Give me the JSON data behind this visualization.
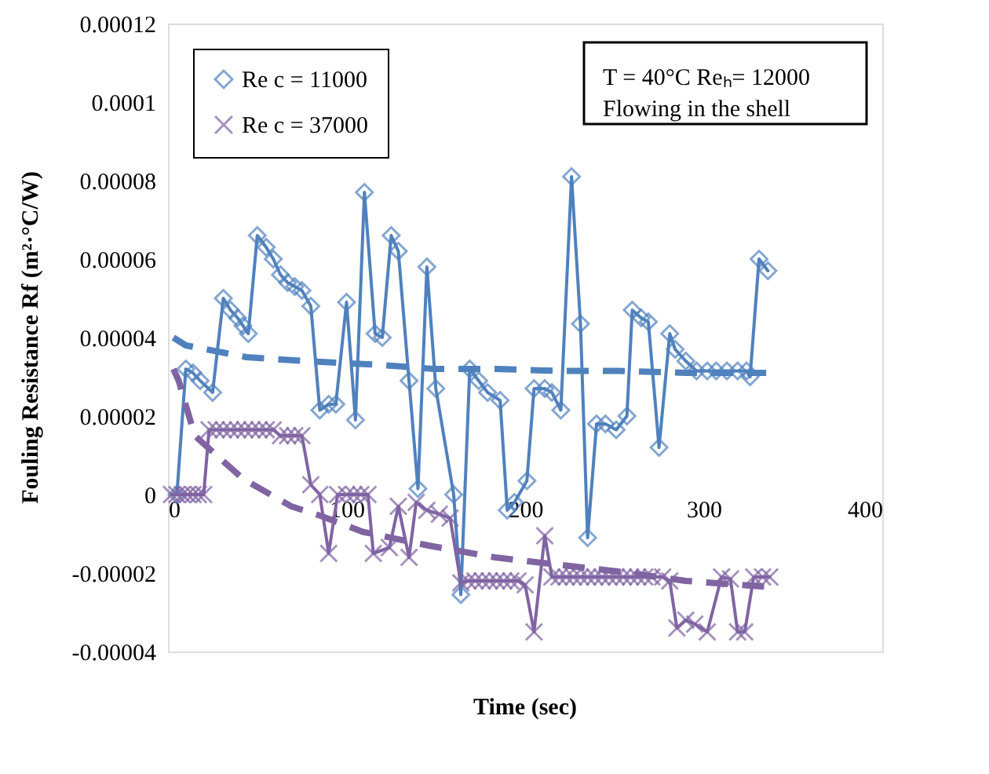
{
  "chart_data": {
    "type": "line",
    "xlabel": "Time (sec)",
    "ylabel": "Fouling Resistance  Rf   (m²·°C/W)",
    "xlim": [
      0,
      400
    ],
    "xticks": [
      0,
      100,
      200,
      300,
      400
    ],
    "ylim": [
      -4e-05,
      0.00012
    ],
    "yticks": [
      {
        "value": -4e-05,
        "label": "-0.00004"
      },
      {
        "value": -2e-05,
        "label": "-0.00002"
      },
      0,
      {
        "value": 2e-05,
        "label": "0.00002"
      },
      {
        "value": 4e-05,
        "label": "0.00004"
      },
      {
        "value": 6e-05,
        "label": "0.00006"
      },
      {
        "value": 8e-05,
        "label": "0.00008"
      },
      {
        "value": 0.0001,
        "label": "0.0001"
      },
      {
        "value": 0.00012,
        "label": "0.00012"
      }
    ],
    "grid": false,
    "legend": "top left",
    "annotations": [
      "T = 40°C  Reₕ=  12000",
      "Flowing in the shell"
    ],
    "series": [
      {
        "name": "Re c = 11000",
        "color": "#4f81bd",
        "marker": "diamond",
        "line_style": "solid",
        "x": [
          5,
          10,
          14,
          18,
          25,
          31,
          35,
          39,
          42,
          45,
          50,
          55,
          59,
          63,
          67,
          71,
          75,
          80,
          85,
          90,
          94,
          100,
          105,
          110,
          116,
          120,
          125,
          129,
          135,
          140,
          145,
          150,
          160,
          164,
          169,
          174,
          179,
          186,
          190,
          194,
          201,
          205,
          211,
          215,
          220,
          226,
          231,
          235,
          240,
          245,
          251,
          257,
          260,
          265,
          269,
          275,
          281,
          284,
          290,
          296,
          302,
          307,
          313,
          319,
          324,
          326,
          331,
          336
        ],
        "values": [
          0,
          3.2e-05,
          3.1e-05,
          2.9e-05,
          2.6e-05,
          5e-05,
          4.7e-05,
          4.5e-05,
          4.3e-05,
          4.1e-05,
          6.6e-05,
          6.3e-05,
          6e-05,
          5.6e-05,
          5.4e-05,
          5.3e-05,
          5.2e-05,
          4.8e-05,
          2.15e-05,
          2.3e-05,
          2.3e-05,
          4.9e-05,
          1.9e-05,
          7.7e-05,
          4.1e-05,
          4e-05,
          6.6e-05,
          6.2e-05,
          2.9e-05,
          1.5e-06,
          5.8e-05,
          2.7e-05,
          0,
          -2.55e-05,
          3.2e-05,
          2.9e-05,
          2.6e-05,
          2.4e-05,
          -4e-06,
          -2e-06,
          3.5e-06,
          2.7e-05,
          2.7e-05,
          2.6e-05,
          2.15e-05,
          8.1e-05,
          4.35e-05,
          -1.1e-05,
          1.8e-05,
          1.8e-05,
          1.65e-05,
          2e-05,
          4.7e-05,
          4.5e-05,
          4.4e-05,
          1.2e-05,
          4.1e-05,
          3.7e-05,
          3.4e-05,
          3.15e-05,
          3.15e-05,
          3.15e-05,
          3.15e-05,
          3.15e-05,
          3.15e-05,
          3e-05,
          6e-05,
          5.7e-05
        ]
      },
      {
        "name": "Re c = 37000",
        "color": "#8064a2",
        "marker": "cross",
        "line_style": "solid",
        "x": [
          2,
          5,
          8,
          11,
          14,
          17,
          20,
          23,
          27,
          31,
          35,
          39,
          43,
          47,
          51,
          55,
          59,
          63,
          67,
          71,
          75,
          80,
          85,
          90,
          95,
          100,
          104,
          108,
          112,
          115,
          124,
          129,
          135,
          139,
          145,
          152,
          158,
          164,
          168,
          172,
          176,
          180,
          184,
          188,
          192,
          196,
          200,
          205,
          211,
          215,
          219,
          223,
          227,
          231,
          235,
          239,
          243,
          247,
          251,
          255,
          259,
          263,
          267,
          271,
          277,
          281,
          285,
          290,
          295,
          302,
          310,
          315,
          319,
          323,
          328,
          333,
          337
        ],
        "values": [
          0,
          0,
          0,
          0,
          0,
          0,
          0,
          1.65e-05,
          1.65e-05,
          1.65e-05,
          1.65e-05,
          1.65e-05,
          1.65e-05,
          1.65e-05,
          1.65e-05,
          1.65e-05,
          1.65e-05,
          1.5e-05,
          1.5e-05,
          1.5e-05,
          1.5e-05,
          2.5e-06,
          0,
          -1.5e-05,
          0,
          0,
          0,
          0,
          0,
          -1.5e-05,
          -1.35e-05,
          -3e-06,
          -1.6e-05,
          -2e-06,
          -4e-06,
          -5e-06,
          -6e-06,
          -2.25e-05,
          -2.2e-05,
          -2.2e-05,
          -2.2e-05,
          -2.2e-05,
          -2.2e-05,
          -2.2e-05,
          -2.2e-05,
          -2.2e-05,
          -2.3e-05,
          -3.5e-05,
          -1.05e-05,
          -2.1e-05,
          -2.1e-05,
          -2.1e-05,
          -2.1e-05,
          -2.1e-05,
          -2.1e-05,
          -2.1e-05,
          -2.1e-05,
          -2.1e-05,
          -2.1e-05,
          -2.1e-05,
          -2.1e-05,
          -2.1e-05,
          -2.1e-05,
          -2.1e-05,
          -2.1e-05,
          -2.2e-05,
          -3.4e-05,
          -3.2e-05,
          -3.3e-05,
          -3.5e-05,
          -2.1e-05,
          -2.15e-05,
          -3.5e-05,
          -3.5e-05,
          -2.1e-05,
          -2.1e-05,
          -2.1e-05
        ]
      },
      {
        "type": "line",
        "color": "#4f81bd",
        "marker": "none",
        "line_style": "dashed",
        "x": [
          3,
          10,
          44,
          77,
          120,
          149,
          184,
          218,
          252,
          290,
          335
        ],
        "values": [
          4e-05,
          3.8e-05,
          3.5e-05,
          3.4e-05,
          3.3e-05,
          3.2e-05,
          3.2e-05,
          3.15e-05,
          3.15e-05,
          3.1e-05,
          3.1e-05
        ]
      },
      {
        "type": "line",
        "color": "#8064a2",
        "marker": "none",
        "line_style": "dashed",
        "x": [
          3,
          6,
          15,
          42,
          69,
          86,
          109,
          146,
          183,
          250,
          290,
          335
        ],
        "values": [
          3.2e-05,
          2.9e-05,
          1.5e-05,
          4e-06,
          -3e-06,
          -5.5e-06,
          -9.5e-06,
          -1.3e-05,
          -1.6e-05,
          -1.95e-05,
          -2.2e-05,
          -2.35e-05
        ]
      }
    ]
  }
}
